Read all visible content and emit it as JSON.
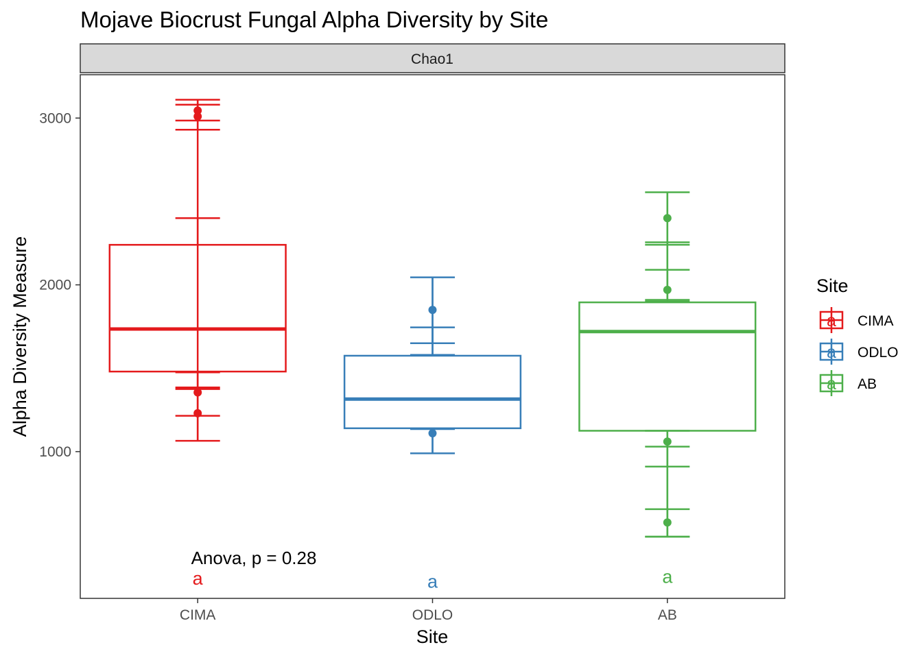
{
  "chart_data": {
    "type": "box",
    "title": "Mojave Biocrust Fungal Alpha Diversity by Site",
    "facet_label": "Chao1",
    "xlabel": "Site",
    "ylabel": "Alpha Diversity Measure",
    "ylim": [
      120,
      3260
    ],
    "y_ticks": [
      1000,
      2000,
      3000
    ],
    "categories": [
      "CIMA",
      "ODLO",
      "AB"
    ],
    "grid": false,
    "legend": {
      "title": "Site",
      "position": "right",
      "entries": [
        "CIMA",
        "ODLO",
        "AB"
      ],
      "glyph": "a"
    },
    "annotation": "Anova, p = 0.28",
    "series": [
      {
        "name": "CIMA",
        "color": "#E41A1C",
        "box": {
          "q1": 1480,
          "median": 1735,
          "q3": 2240,
          "whisker_low": 1065,
          "whisker_high": 3110
        },
        "points": [
          3045,
          3010,
          1355,
          1230
        ],
        "errorbars": [
          {
            "low": 2930,
            "high": 3110
          },
          {
            "low": 2985,
            "high": 3080
          },
          {
            "low": 1385,
            "high": 2400
          },
          {
            "low": 1065,
            "high": 1475
          },
          {
            "low": 1215,
            "high": 1375
          }
        ],
        "letter": "a",
        "letter_y": 240
      },
      {
        "name": "ODLO",
        "color": "#377EB8",
        "box": {
          "q1": 1140,
          "median": 1315,
          "q3": 1575,
          "whisker_low": 990,
          "whisker_high": 2045
        },
        "points": [
          1850,
          1110
        ],
        "errorbars": [
          {
            "low": 1650,
            "high": 2045
          },
          {
            "low": 1580,
            "high": 1745
          },
          {
            "low": 990,
            "high": 1135
          }
        ],
        "letter": "a",
        "letter_y": 220
      },
      {
        "name": "AB",
        "color": "#4DAF4A",
        "box": {
          "q1": 1125,
          "median": 1720,
          "q3": 1895,
          "whisker_low": 490,
          "whisker_high": 2555
        },
        "points": [
          2400,
          1970,
          1060,
          575
        ],
        "errorbars": [
          {
            "low": 2240,
            "high": 2555
          },
          {
            "low": 1910,
            "high": 2255
          },
          {
            "low": 1900,
            "high": 2090
          },
          {
            "low": 910,
            "high": 1125
          },
          {
            "low": 490,
            "high": 1030
          },
          {
            "low": 490,
            "high": 655
          }
        ],
        "letter": "a",
        "letter_y": 250
      }
    ]
  }
}
